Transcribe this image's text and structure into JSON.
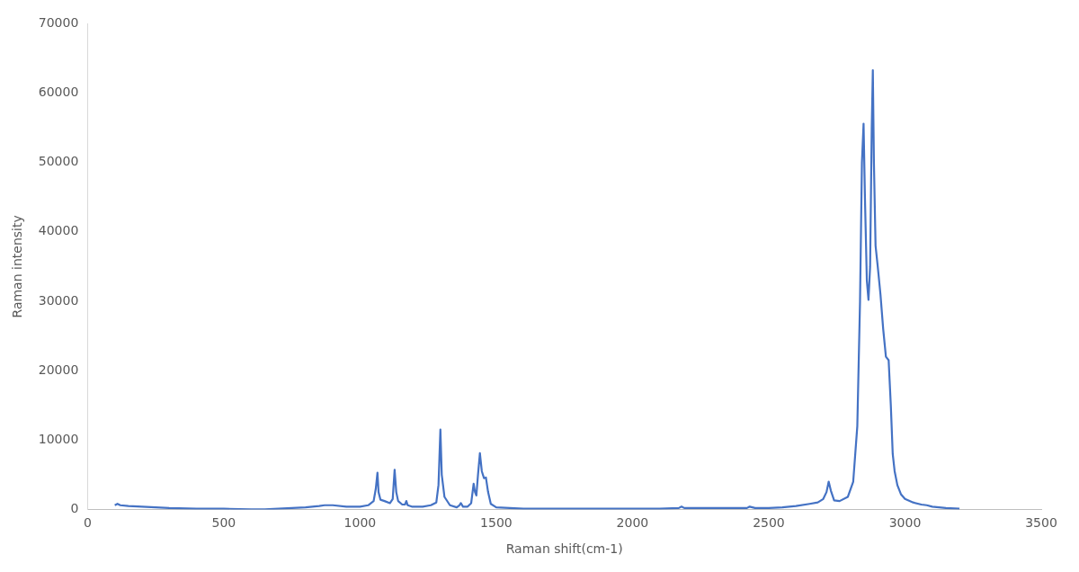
{
  "chart_data": {
    "type": "line",
    "xlabel": "Raman shift(cm-1)",
    "ylabel": "Raman intensity",
    "xlim": [
      0,
      3500
    ],
    "xticks": [
      0,
      500,
      1000,
      1500,
      2000,
      2500,
      3000,
      3500
    ],
    "ylim": [
      0,
      70000
    ],
    "yticks": [
      0,
      10000,
      20000,
      30000,
      40000,
      50000,
      60000,
      70000
    ],
    "grid": false,
    "legend": false,
    "marker": "none",
    "line_style": "solid",
    "series": [
      {
        "color": "#4472c4",
        "x": [
          100,
          110,
          120,
          150,
          200,
          300,
          400,
          500,
          600,
          650,
          700,
          750,
          800,
          850,
          870,
          900,
          950,
          1000,
          1030,
          1050,
          1058,
          1064,
          1068,
          1075,
          1090,
          1110,
          1120,
          1127,
          1133,
          1140,
          1155,
          1165,
          1170,
          1175,
          1190,
          1230,
          1260,
          1280,
          1288,
          1295,
          1300,
          1310,
          1330,
          1355,
          1365,
          1370,
          1378,
          1395,
          1408,
          1417,
          1422,
          1427,
          1433,
          1440,
          1447,
          1455,
          1462,
          1470,
          1480,
          1500,
          1550,
          1600,
          1700,
          1800,
          1900,
          2000,
          2100,
          2170,
          2180,
          2190,
          2300,
          2420,
          2430,
          2450,
          2500,
          2550,
          2600,
          2650,
          2680,
          2700,
          2712,
          2720,
          2728,
          2740,
          2760,
          2790,
          2810,
          2825,
          2835,
          2842,
          2848,
          2853,
          2860,
          2866,
          2872,
          2878,
          2882,
          2886,
          2892,
          2900,
          2910,
          2920,
          2930,
          2940,
          2948,
          2955,
          2962,
          2972,
          2985,
          3000,
          3030,
          3060,
          3080,
          3100,
          3150,
          3200
        ],
        "values": [
          600,
          800,
          600,
          500,
          400,
          200,
          100,
          100,
          0,
          0,
          100,
          200,
          300,
          500,
          600,
          600,
          400,
          400,
          600,
          1200,
          3000,
          5300,
          2500,
          1400,
          1200,
          900,
          1500,
          5700,
          2500,
          1200,
          700,
          700,
          1200,
          600,
          400,
          400,
          600,
          1000,
          3500,
          11500,
          5000,
          1800,
          600,
          300,
          600,
          900,
          400,
          400,
          900,
          3700,
          2500,
          2000,
          5000,
          8100,
          5500,
          4500,
          4600,
          2500,
          800,
          300,
          200,
          100,
          100,
          100,
          100,
          100,
          100,
          200,
          400,
          200,
          200,
          200,
          400,
          200,
          200,
          300,
          500,
          800,
          1000,
          1500,
          2500,
          4000,
          2700,
          1300,
          1200,
          1800,
          4000,
          12000,
          30000,
          50000,
          55600,
          45000,
          33000,
          30200,
          35000,
          55000,
          63300,
          50000,
          38000,
          35000,
          31000,
          26000,
          22000,
          21500,
          15000,
          8000,
          5500,
          3500,
          2200,
          1500,
          1000,
          700,
          600,
          400,
          200,
          100
        ]
      }
    ]
  }
}
